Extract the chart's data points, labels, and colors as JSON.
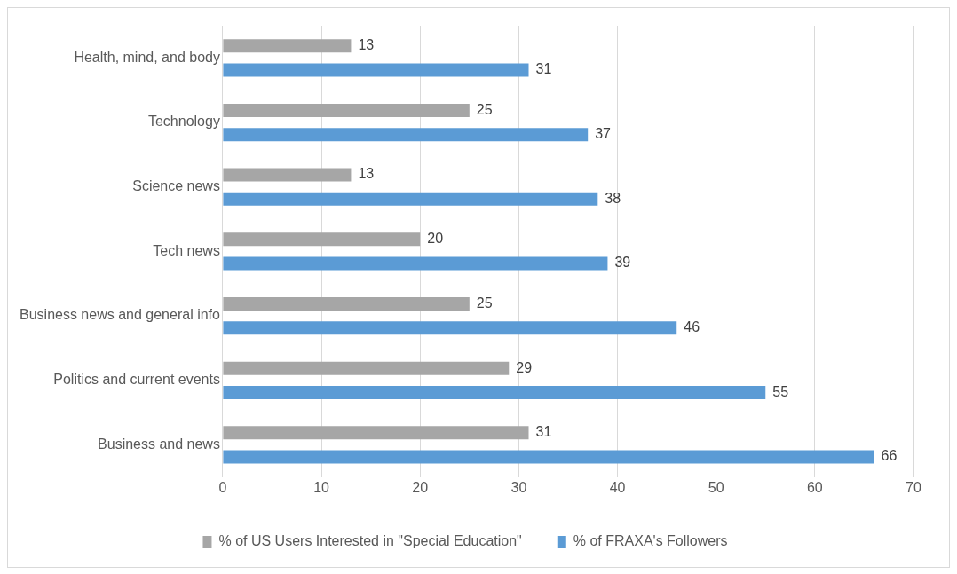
{
  "chart_data": {
    "type": "bar",
    "orientation": "horizontal",
    "categories": [
      "Health, mind, and body",
      "Technology",
      "Science news",
      "Tech news",
      "Business news and general info",
      "Politics and current events",
      "Business and news"
    ],
    "series": [
      {
        "name": "% of US Users Interested in \"Special Education\"",
        "color": "#a6a6a6",
        "values": [
          13,
          25,
          13,
          20,
          25,
          29,
          31
        ]
      },
      {
        "name": "% of FRAXA's Followers",
        "color": "#5b9bd5",
        "values": [
          31,
          37,
          38,
          39,
          46,
          55,
          66
        ]
      }
    ],
    "xlim": [
      0,
      70
    ],
    "xticks": [
      0,
      10,
      20,
      30,
      40,
      50,
      60,
      70
    ],
    "grid": "x",
    "legend": "bottom",
    "data_labels": true
  }
}
